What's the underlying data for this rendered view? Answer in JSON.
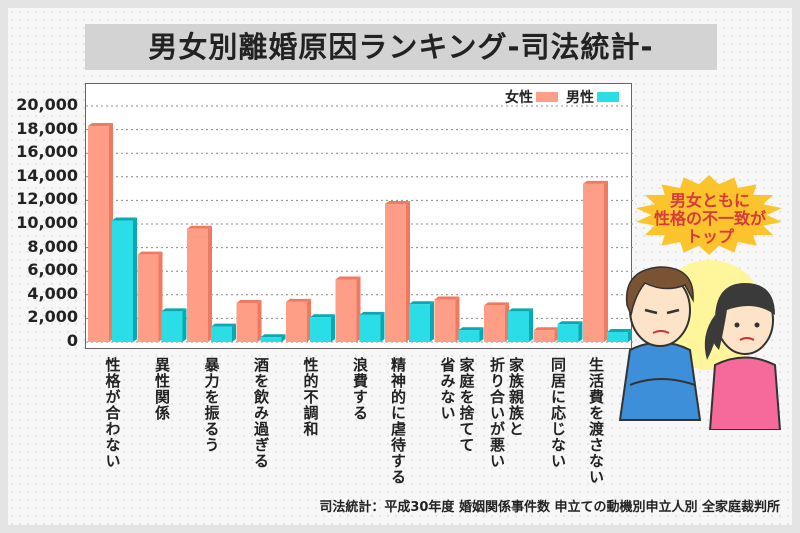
{
  "title": "男女別離婚原因ランキング-司法統計-",
  "source": "司法統計：平成30年度 婚姻関係事件数 申立ての動機別申立人別 全家庭裁判所",
  "callout": [
    "男女ともに",
    "性格の不一致が",
    "トップ"
  ],
  "colors": {
    "female": "#fe9e86",
    "female_side": "#f07a60",
    "male": "#2adde6",
    "male_side": "#08a9b2",
    "title_bg": "#d3d3d3",
    "callout_text": "#d8393f",
    "callout_bg": "#fbc42c"
  },
  "chart_data": {
    "type": "bar",
    "title": "男女別離婚原因ランキング-司法統計-",
    "categories": [
      "性格が合わない",
      "異性関係",
      "暴力を振るう",
      "酒を飲み過ぎる",
      "性的不調和",
      "浪費する",
      "精神的に虐待する",
      "家庭を捨てて省みない",
      "家族親族と折り合いが悪い",
      "同居に応じない",
      "生活費を渡さない"
    ],
    "series": [
      {
        "name": "女性",
        "values": [
          18300,
          7400,
          9600,
          3300,
          3400,
          5300,
          11700,
          3600,
          3100,
          1000,
          13400
        ]
      },
      {
        "name": "男性",
        "values": [
          10300,
          2600,
          1300,
          400,
          2100,
          2300,
          3200,
          1000,
          2600,
          1500,
          850
        ]
      }
    ],
    "ylim": [
      0,
      20000
    ],
    "yticks": [
      "0",
      "2,000",
      "4,000",
      "6,000",
      "8,000",
      "10,000",
      "12,000",
      "14,000",
      "16,000",
      "18,000",
      "20,000"
    ],
    "grid": true,
    "legend": "top-right"
  }
}
